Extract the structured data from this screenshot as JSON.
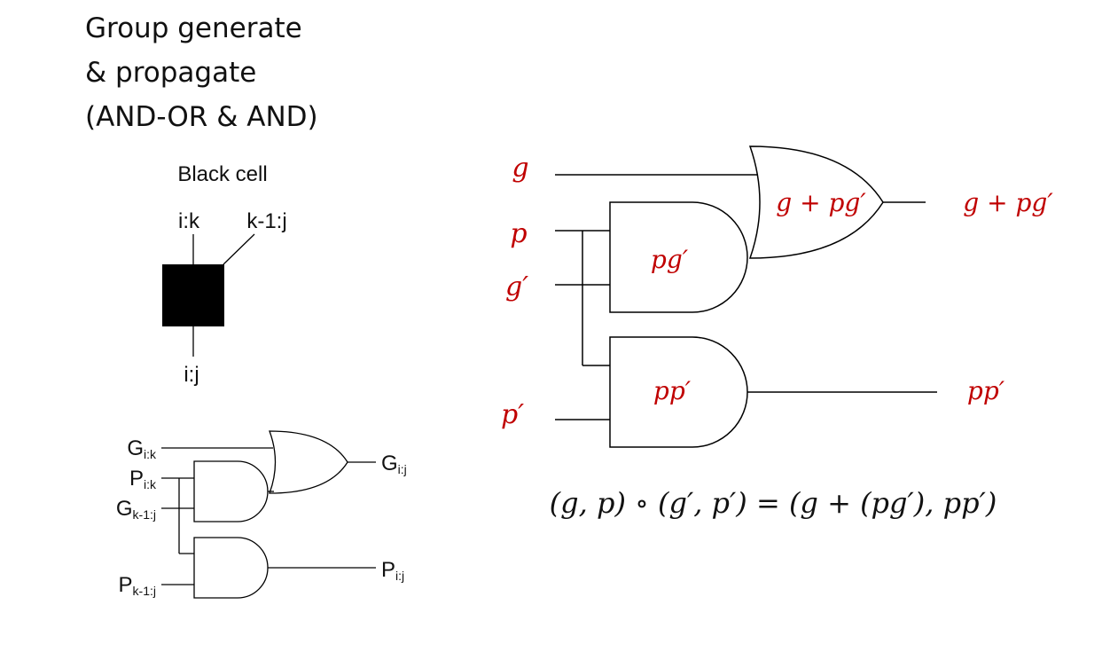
{
  "title": {
    "line1": "Group generate",
    "line2": "& propagate",
    "line3": "(AND-OR & AND)"
  },
  "black_cell": {
    "label": "Black cell",
    "input_left": "i:k",
    "input_right": "k-1:j",
    "output": "i:j"
  },
  "small_circuit": {
    "g_ik": {
      "base": "G",
      "sub": "i:k"
    },
    "p_ik": {
      "base": "P",
      "sub": "i:k"
    },
    "g_k1j": {
      "base": "G",
      "sub": "k-1:j"
    },
    "p_k1j": {
      "base": "P",
      "sub": "k-1:j"
    },
    "g_ij": {
      "base": "G",
      "sub": "i:j"
    },
    "p_ij": {
      "base": "P",
      "sub": "i:j"
    }
  },
  "large_circuit": {
    "in_g": "g",
    "in_p": "p",
    "in_gprime": "g′",
    "in_pprime": "p′",
    "and1_label": "pg′",
    "and2_label": "pp′",
    "or_label": "g + pg′",
    "out_g": "g + pg′",
    "out_p": "pp′"
  },
  "equation": "(g, p) ∘ (g′, p′) = (g + (pg′), pp′)",
  "colors": {
    "math_red": "#c00000",
    "ink": "#111111"
  }
}
